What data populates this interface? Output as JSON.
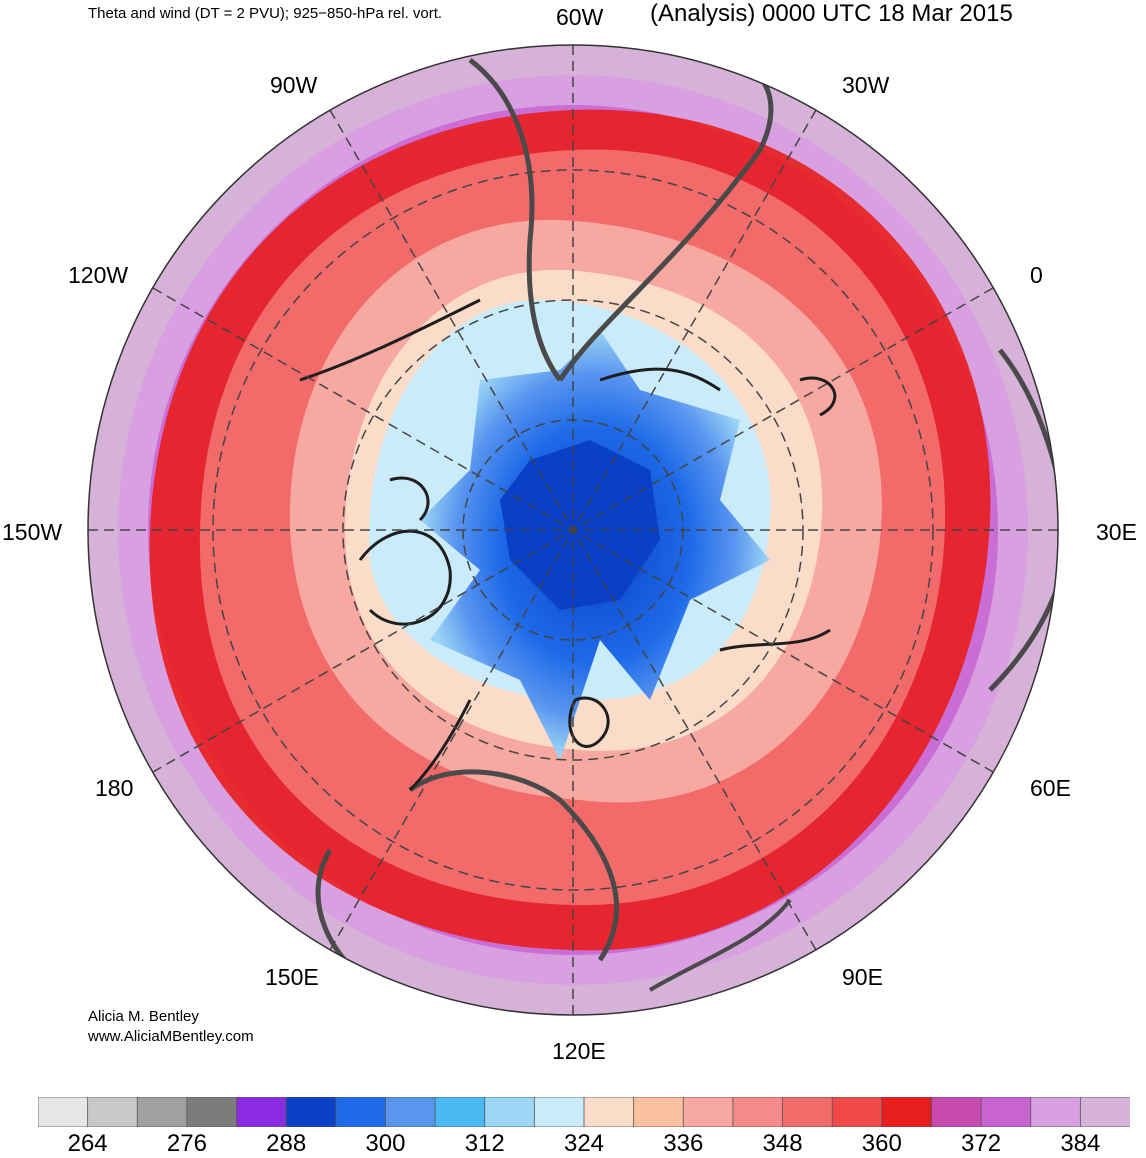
{
  "header": {
    "left_title": "Theta and wind (DT = 2 PVU); 925−850-hPa rel. vort.",
    "right_title": "(Analysis) 0000 UTC 18 Mar 2015"
  },
  "map": {
    "projection": "south-polar-stereographic",
    "longitude_labels": [
      "60W",
      "30W",
      "0",
      "30E",
      "60E",
      "90E",
      "120E",
      "150E",
      "180",
      "150W",
      "120W",
      "90W"
    ],
    "icons": [
      "wind-barb-icon",
      "vorticity-contour-icon",
      "coastline-icon"
    ],
    "colors": {
      "polar_core": "#1e5fd8",
      "jet_red": "#e8201a",
      "outer_purple": "#cf8fd6",
      "coastline": "#4a4a4a"
    }
  },
  "credit": {
    "author": "Alicia M. Bentley",
    "website": "www.AliciaMBentley.com"
  },
  "colorbar": {
    "colors": [
      "#e6e6e6",
      "#c8c8c8",
      "#a0a0a0",
      "#7c7c7c",
      "#8a2be2",
      "#0a3fc8",
      "#1e6ae8",
      "#5a96f0",
      "#4cbaf2",
      "#9dd6f5",
      "#c9ebfa",
      "#fadcc8",
      "#f9c19e",
      "#f7a8a0",
      "#f58a8a",
      "#f26a6a",
      "#f04848",
      "#e81e1e",
      "#c84ab0",
      "#c864d2",
      "#d8a0e0",
      "#d6b2d9"
    ],
    "tick_labels": [
      "264",
      "276",
      "288",
      "300",
      "312",
      "324",
      "336",
      "348",
      "360",
      "372",
      "384"
    ]
  }
}
